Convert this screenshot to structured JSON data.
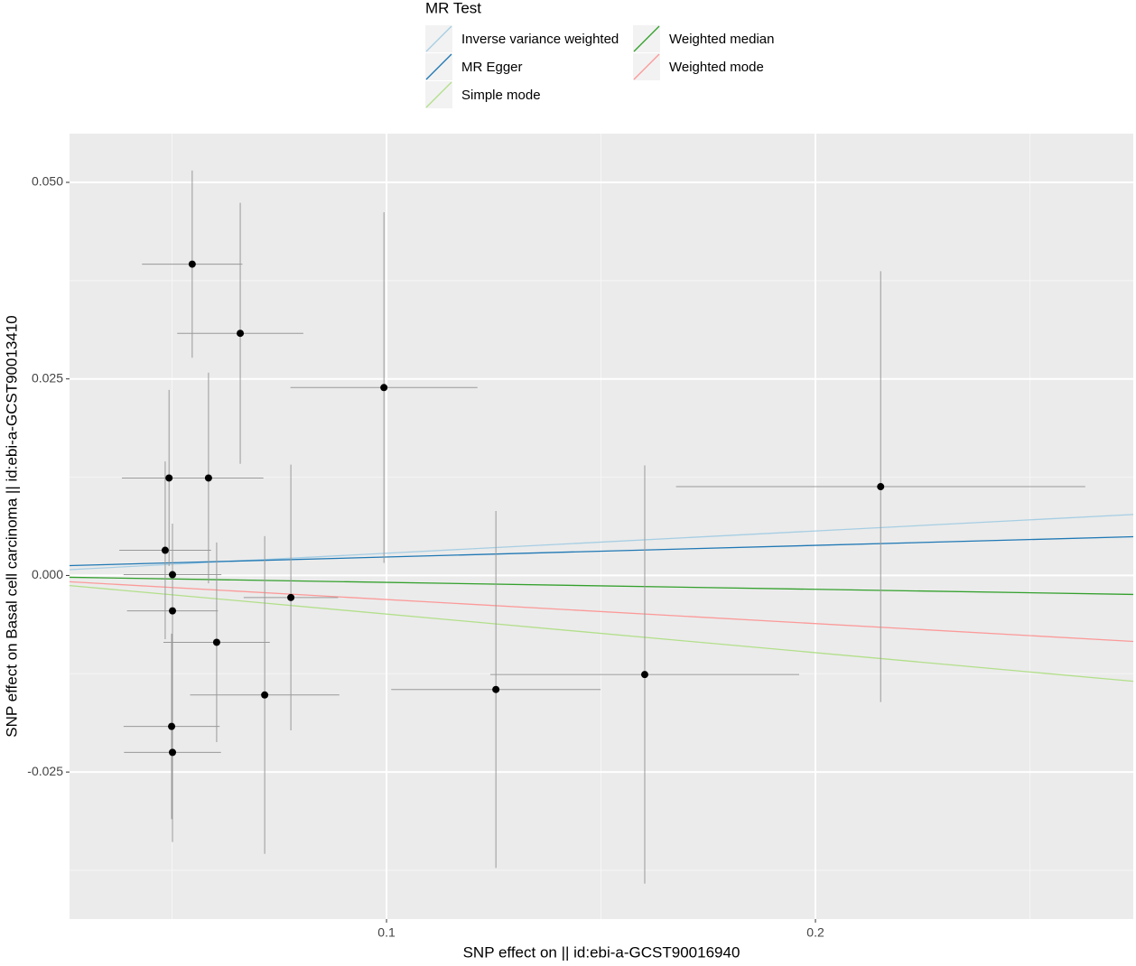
{
  "chart_data": {
    "type": "scatter",
    "xlabel": "SNP effect on  || id:ebi-a-GCST90016940",
    "ylabel": "SNP effect on Basal cell carcinoma || id:ebi-a-GCST90013410",
    "legend_title": "MR Test",
    "x": [
      0.0547,
      0.0659,
      0.0994,
      0.2152,
      0.0493,
      0.0585,
      0.0484,
      0.0501,
      0.0501,
      0.0604,
      0.0777,
      0.0716,
      0.1255,
      0.1602,
      0.0499,
      0.0501
    ],
    "values": [
      0.0396,
      0.0308,
      0.0239,
      0.0113,
      0.0124,
      0.0124,
      0.0032,
      0.0001,
      -0.0045,
      -0.0085,
      -0.0028,
      -0.0152,
      -0.0145,
      -0.0126,
      -0.0192,
      -0.0225
    ],
    "xerr": [
      0.0117,
      0.0147,
      0.0218,
      0.0477,
      0.011,
      0.0128,
      0.0107,
      0.0114,
      0.0106,
      0.0124,
      0.011,
      0.0174,
      0.0244,
      0.036,
      0.0112,
      0.0113
    ],
    "yerr": [
      0.0119,
      0.0166,
      0.0223,
      0.0274,
      0.0112,
      0.0134,
      0.0113,
      0.0065,
      0.0109,
      0.0127,
      0.0169,
      0.0202,
      0.0227,
      0.0266,
      0.0118,
      0.0114
    ],
    "point_color": "#000000",
    "errorbar_color": "#999999",
    "series": [
      {
        "name": "Inverse variance weighted",
        "color": "#a6cee3",
        "intercept": 0,
        "slope": 0.0283
      },
      {
        "name": "MR Egger",
        "color": "#1f78b4",
        "intercept": 0.00087,
        "slope": 0.0148
      },
      {
        "name": "Simple mode",
        "color": "#b2df8a",
        "intercept": 0,
        "slope": -0.0491
      },
      {
        "name": "Weighted median",
        "color": "#33a02c",
        "intercept": 0,
        "slope": -0.0088
      },
      {
        "name": "Weighted mode",
        "color": "#fb9a99",
        "intercept": 0,
        "slope": -0.0306
      }
    ],
    "xlim": [
      0.0261,
      0.2741
    ],
    "ylim": [
      -0.0437,
      0.0562
    ],
    "xticks": [
      0.1,
      0.2
    ],
    "yticks": [
      {
        "value": 0.05,
        "label": "0.050"
      },
      0.025,
      {
        "value": 0,
        "label": "0.000"
      },
      -0.025
    ],
    "grid": true,
    "minor_grid": true,
    "legend_position": "top"
  }
}
